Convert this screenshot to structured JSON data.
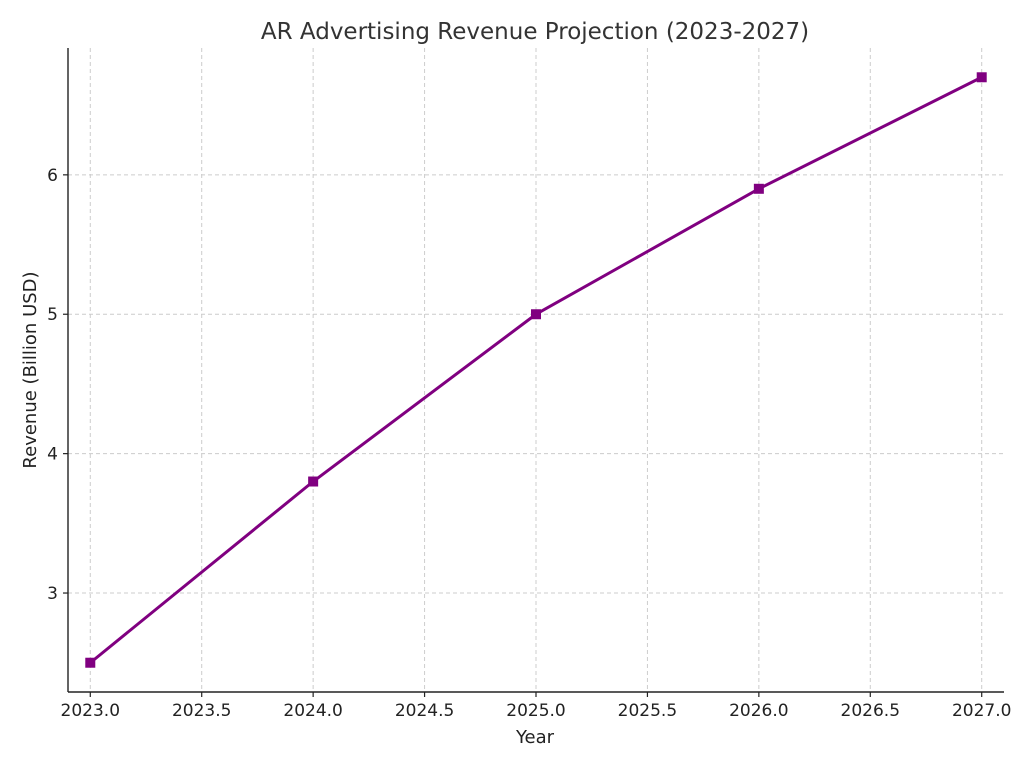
{
  "chart_data": {
    "type": "line",
    "title": "AR Advertising Revenue Projection (2023-2027)",
    "xlabel": "Year",
    "ylabel": "Revenue (Billion USD)",
    "x": [
      2023,
      2024,
      2025,
      2026,
      2027
    ],
    "series": [
      {
        "values": [
          2.5,
          3.8,
          5.0,
          5.9,
          6.7
        ],
        "color": "#800080",
        "marker": "square"
      }
    ],
    "xticks": [
      "2023.0",
      "2023.5",
      "2024.0",
      "2024.5",
      "2025.0",
      "2025.5",
      "2026.0",
      "2026.5",
      "2027.0"
    ],
    "yticks": [
      "3",
      "4",
      "5",
      "6"
    ],
    "xlim": [
      2022.9,
      2027.1
    ],
    "ylim": [
      2.29,
      6.91
    ],
    "grid": true,
    "legend": "none"
  }
}
